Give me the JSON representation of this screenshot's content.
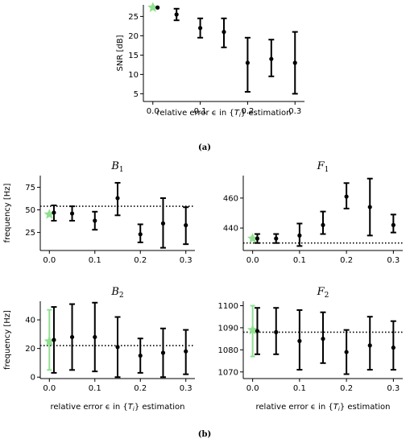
{
  "colors": {
    "measured": "#000000",
    "reference": "#90e090"
  },
  "captions": {
    "a": "(a)",
    "b": "(b)"
  },
  "chart_data": [
    {
      "id": "snr",
      "type": "scatter",
      "xlabel": "relative error ϵ in {T_i} estimation",
      "ylabel": "SNR [dB]",
      "xlim": [
        -0.02,
        0.32
      ],
      "ylim": [
        3,
        28
      ],
      "xticks": [
        "0.0",
        "0.1",
        "0.2",
        "0.3"
      ],
      "xtick_values": [
        0,
        0.1,
        0.2,
        0.3
      ],
      "yticks": [
        "5",
        "10",
        "15",
        "20",
        "25"
      ],
      "ytick_values": [
        5,
        10,
        15,
        20,
        25
      ],
      "reference": {
        "x": 0.0,
        "y": 27.3
      },
      "x": [
        0.01,
        0.05,
        0.1,
        0.15,
        0.2,
        0.25,
        0.3
      ],
      "y": [
        27.3,
        25.5,
        22.0,
        21.0,
        13.0,
        14.0,
        13.0
      ],
      "err_low": [
        27.3,
        24.0,
        19.5,
        17.0,
        5.5,
        9.5,
        5.0
      ],
      "err_high": [
        27.3,
        27.0,
        24.5,
        24.5,
        19.5,
        19.0,
        21.0
      ]
    },
    {
      "id": "B1",
      "type": "scatter",
      "title": "B",
      "title_sub": "1",
      "ylabel": "frequency [Hz]",
      "xlim": [
        -0.02,
        0.32
      ],
      "ylim": [
        5,
        88
      ],
      "xticks": [
        "0.0",
        "0.1",
        "0.2",
        "0.3"
      ],
      "xtick_values": [
        0,
        0.1,
        0.2,
        0.3
      ],
      "yticks": [
        "25",
        "50",
        "75"
      ],
      "ytick_values": [
        25,
        50,
        75
      ],
      "hline": 54,
      "reference": {
        "x": 0.0,
        "y": 45
      },
      "x": [
        0.01,
        0.05,
        0.1,
        0.15,
        0.2,
        0.25,
        0.3
      ],
      "y": [
        47,
        46,
        38,
        63,
        23,
        35,
        33
      ],
      "err_low": [
        38,
        38,
        28,
        44,
        14,
        8,
        12
      ],
      "err_high": [
        55,
        54,
        48,
        80,
        34,
        63,
        53
      ]
    },
    {
      "id": "F1",
      "type": "scatter",
      "title": "F",
      "title_sub": "1",
      "xlim": [
        -0.02,
        0.32
      ],
      "ylim": [
        425,
        475
      ],
      "xticks": [
        "0.0",
        "0.1",
        "0.2",
        "0.3"
      ],
      "xtick_values": [
        0,
        0.1,
        0.2,
        0.3
      ],
      "yticks": [
        "440",
        "460"
      ],
      "ytick_values": [
        440,
        460
      ],
      "hline": 430,
      "reference": {
        "x": 0.0,
        "y": 433
      },
      "x": [
        0.01,
        0.05,
        0.1,
        0.15,
        0.2,
        0.25,
        0.3
      ],
      "y": [
        433,
        433,
        435,
        442,
        461,
        454,
        442
      ],
      "err_low": [
        430,
        430,
        428,
        436,
        453,
        435,
        437
      ],
      "err_high": [
        436,
        436,
        443,
        451,
        470,
        473,
        449
      ]
    },
    {
      "id": "B2",
      "type": "scatter",
      "title": "B",
      "title_sub": "2",
      "ylabel": "frequency [Hz]",
      "xlabel": "relative error ϵ in {T_i} estimation",
      "xlim": [
        -0.02,
        0.32
      ],
      "ylim": [
        -1,
        53
      ],
      "xticks": [
        "0.0",
        "0.1",
        "0.2",
        "0.3"
      ],
      "xtick_values": [
        0,
        0.1,
        0.2,
        0.3
      ],
      "yticks": [
        "0",
        "20",
        "40"
      ],
      "ytick_values": [
        0,
        20,
        40
      ],
      "hline": 22,
      "reference": {
        "x": 0.0,
        "y": 25,
        "err_low": 5,
        "err_high": 47
      },
      "x": [
        0.01,
        0.05,
        0.1,
        0.15,
        0.2,
        0.25,
        0.3
      ],
      "y": [
        26,
        28,
        28,
        21,
        15,
        17,
        18
      ],
      "err_low": [
        3,
        5,
        4,
        0,
        3,
        0,
        2
      ],
      "err_high": [
        49,
        51,
        52,
        42,
        27,
        34,
        33
      ]
    },
    {
      "id": "F2",
      "type": "scatter",
      "title": "F",
      "title_sub": "2",
      "xlabel": "relative error ϵ in {T_i} estimation",
      "xlim": [
        -0.02,
        0.32
      ],
      "ylim": [
        1067,
        1102
      ],
      "xticks": [
        "0.0",
        "0.1",
        "0.2",
        "0.3"
      ],
      "xtick_values": [
        0,
        0.1,
        0.2,
        0.3
      ],
      "yticks": [
        "1070",
        "1080",
        "1090",
        "1100"
      ],
      "ytick_values": [
        1070,
        1080,
        1090,
        1100
      ],
      "hline": 1088,
      "reference": {
        "x": 0.0,
        "y": 1089,
        "err_low": 1077,
        "err_high": 1100
      },
      "x": [
        0.01,
        0.05,
        0.1,
        0.15,
        0.2,
        0.25,
        0.3
      ],
      "y": [
        1088.5,
        1088,
        1084,
        1085,
        1079,
        1082,
        1081
      ],
      "err_low": [
        1078,
        1078,
        1071,
        1074,
        1069,
        1071,
        1071
      ],
      "err_high": [
        1099,
        1099,
        1098,
        1097,
        1089,
        1095,
        1093
      ]
    }
  ]
}
